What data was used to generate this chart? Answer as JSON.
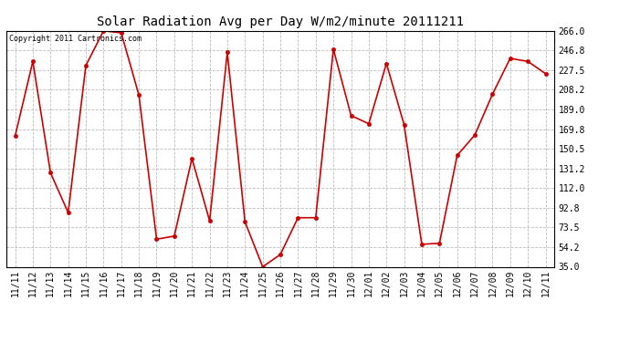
{
  "title": "Solar Radiation Avg per Day W/m2/minute 20111211",
  "copyright": "Copyright 2011 Cartronics.com",
  "labels": [
    "11/11",
    "11/12",
    "11/13",
    "11/14",
    "11/15",
    "11/16",
    "11/17",
    "11/18",
    "11/19",
    "11/20",
    "11/21",
    "11/22",
    "11/23",
    "11/24",
    "11/25",
    "11/26",
    "11/27",
    "11/28",
    "11/29",
    "11/30",
    "12/01",
    "12/02",
    "12/03",
    "12/04",
    "12/05",
    "12/06",
    "12/07",
    "12/08",
    "12/09",
    "12/10",
    "12/11"
  ],
  "values": [
    163,
    236,
    127,
    88,
    232,
    266,
    264,
    203,
    62,
    65,
    141,
    80,
    245,
    79,
    35,
    47,
    83,
    83,
    248,
    183,
    175,
    234,
    174,
    57,
    58,
    144,
    164,
    204,
    239,
    236,
    224
  ],
  "line_color": "#cc0000",
  "marker_color": "#cc0000",
  "bg_color": "#ffffff",
  "plot_bg_color": "#ffffff",
  "grid_color": "#bbbbbb",
  "ylim": [
    35.0,
    266.0
  ],
  "yticks": [
    35.0,
    54.2,
    73.5,
    92.8,
    112.0,
    131.2,
    150.5,
    169.8,
    189.0,
    208.2,
    227.5,
    246.8,
    266.0
  ],
  "title_fontsize": 10,
  "tick_fontsize": 7,
  "copyright_fontsize": 6
}
